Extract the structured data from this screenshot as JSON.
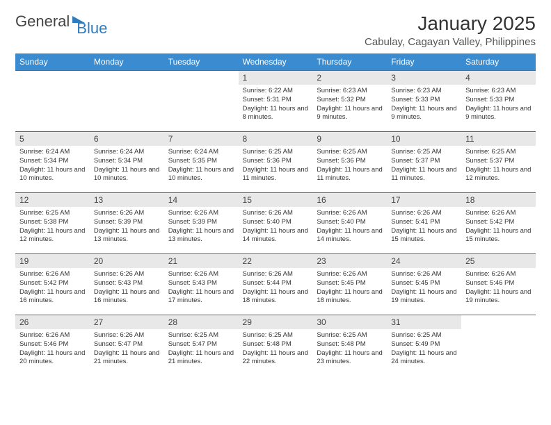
{
  "logo": {
    "text1": "General",
    "text2": "Blue"
  },
  "title": "January 2025",
  "location": "Cabulay, Cagayan Valley, Philippines",
  "colors": {
    "header_bg": "#3a8bd0",
    "header_text": "#ffffff",
    "row_border": "#3a6ea5",
    "daynum_bg": "#e8e8e8",
    "page_bg": "#ffffff",
    "text": "#333333",
    "logo_gray": "#444444",
    "logo_blue": "#2e7cc0"
  },
  "weekdays": [
    "Sunday",
    "Monday",
    "Tuesday",
    "Wednesday",
    "Thursday",
    "Friday",
    "Saturday"
  ],
  "weeks": [
    [
      {
        "n": "",
        "sr": "",
        "ss": "",
        "dl": ""
      },
      {
        "n": "",
        "sr": "",
        "ss": "",
        "dl": ""
      },
      {
        "n": "",
        "sr": "",
        "ss": "",
        "dl": ""
      },
      {
        "n": "1",
        "sr": "Sunrise: 6:22 AM",
        "ss": "Sunset: 5:31 PM",
        "dl": "Daylight: 11 hours and 8 minutes."
      },
      {
        "n": "2",
        "sr": "Sunrise: 6:23 AM",
        "ss": "Sunset: 5:32 PM",
        "dl": "Daylight: 11 hours and 9 minutes."
      },
      {
        "n": "3",
        "sr": "Sunrise: 6:23 AM",
        "ss": "Sunset: 5:33 PM",
        "dl": "Daylight: 11 hours and 9 minutes."
      },
      {
        "n": "4",
        "sr": "Sunrise: 6:23 AM",
        "ss": "Sunset: 5:33 PM",
        "dl": "Daylight: 11 hours and 9 minutes."
      }
    ],
    [
      {
        "n": "5",
        "sr": "Sunrise: 6:24 AM",
        "ss": "Sunset: 5:34 PM",
        "dl": "Daylight: 11 hours and 10 minutes."
      },
      {
        "n": "6",
        "sr": "Sunrise: 6:24 AM",
        "ss": "Sunset: 5:34 PM",
        "dl": "Daylight: 11 hours and 10 minutes."
      },
      {
        "n": "7",
        "sr": "Sunrise: 6:24 AM",
        "ss": "Sunset: 5:35 PM",
        "dl": "Daylight: 11 hours and 10 minutes."
      },
      {
        "n": "8",
        "sr": "Sunrise: 6:25 AM",
        "ss": "Sunset: 5:36 PM",
        "dl": "Daylight: 11 hours and 11 minutes."
      },
      {
        "n": "9",
        "sr": "Sunrise: 6:25 AM",
        "ss": "Sunset: 5:36 PM",
        "dl": "Daylight: 11 hours and 11 minutes."
      },
      {
        "n": "10",
        "sr": "Sunrise: 6:25 AM",
        "ss": "Sunset: 5:37 PM",
        "dl": "Daylight: 11 hours and 11 minutes."
      },
      {
        "n": "11",
        "sr": "Sunrise: 6:25 AM",
        "ss": "Sunset: 5:37 PM",
        "dl": "Daylight: 11 hours and 12 minutes."
      }
    ],
    [
      {
        "n": "12",
        "sr": "Sunrise: 6:25 AM",
        "ss": "Sunset: 5:38 PM",
        "dl": "Daylight: 11 hours and 12 minutes."
      },
      {
        "n": "13",
        "sr": "Sunrise: 6:26 AM",
        "ss": "Sunset: 5:39 PM",
        "dl": "Daylight: 11 hours and 13 minutes."
      },
      {
        "n": "14",
        "sr": "Sunrise: 6:26 AM",
        "ss": "Sunset: 5:39 PM",
        "dl": "Daylight: 11 hours and 13 minutes."
      },
      {
        "n": "15",
        "sr": "Sunrise: 6:26 AM",
        "ss": "Sunset: 5:40 PM",
        "dl": "Daylight: 11 hours and 14 minutes."
      },
      {
        "n": "16",
        "sr": "Sunrise: 6:26 AM",
        "ss": "Sunset: 5:40 PM",
        "dl": "Daylight: 11 hours and 14 minutes."
      },
      {
        "n": "17",
        "sr": "Sunrise: 6:26 AM",
        "ss": "Sunset: 5:41 PM",
        "dl": "Daylight: 11 hours and 15 minutes."
      },
      {
        "n": "18",
        "sr": "Sunrise: 6:26 AM",
        "ss": "Sunset: 5:42 PM",
        "dl": "Daylight: 11 hours and 15 minutes."
      }
    ],
    [
      {
        "n": "19",
        "sr": "Sunrise: 6:26 AM",
        "ss": "Sunset: 5:42 PM",
        "dl": "Daylight: 11 hours and 16 minutes."
      },
      {
        "n": "20",
        "sr": "Sunrise: 6:26 AM",
        "ss": "Sunset: 5:43 PM",
        "dl": "Daylight: 11 hours and 16 minutes."
      },
      {
        "n": "21",
        "sr": "Sunrise: 6:26 AM",
        "ss": "Sunset: 5:43 PM",
        "dl": "Daylight: 11 hours and 17 minutes."
      },
      {
        "n": "22",
        "sr": "Sunrise: 6:26 AM",
        "ss": "Sunset: 5:44 PM",
        "dl": "Daylight: 11 hours and 18 minutes."
      },
      {
        "n": "23",
        "sr": "Sunrise: 6:26 AM",
        "ss": "Sunset: 5:45 PM",
        "dl": "Daylight: 11 hours and 18 minutes."
      },
      {
        "n": "24",
        "sr": "Sunrise: 6:26 AM",
        "ss": "Sunset: 5:45 PM",
        "dl": "Daylight: 11 hours and 19 minutes."
      },
      {
        "n": "25",
        "sr": "Sunrise: 6:26 AM",
        "ss": "Sunset: 5:46 PM",
        "dl": "Daylight: 11 hours and 19 minutes."
      }
    ],
    [
      {
        "n": "26",
        "sr": "Sunrise: 6:26 AM",
        "ss": "Sunset: 5:46 PM",
        "dl": "Daylight: 11 hours and 20 minutes."
      },
      {
        "n": "27",
        "sr": "Sunrise: 6:26 AM",
        "ss": "Sunset: 5:47 PM",
        "dl": "Daylight: 11 hours and 21 minutes."
      },
      {
        "n": "28",
        "sr": "Sunrise: 6:25 AM",
        "ss": "Sunset: 5:47 PM",
        "dl": "Daylight: 11 hours and 21 minutes."
      },
      {
        "n": "29",
        "sr": "Sunrise: 6:25 AM",
        "ss": "Sunset: 5:48 PM",
        "dl": "Daylight: 11 hours and 22 minutes."
      },
      {
        "n": "30",
        "sr": "Sunrise: 6:25 AM",
        "ss": "Sunset: 5:48 PM",
        "dl": "Daylight: 11 hours and 23 minutes."
      },
      {
        "n": "31",
        "sr": "Sunrise: 6:25 AM",
        "ss": "Sunset: 5:49 PM",
        "dl": "Daylight: 11 hours and 24 minutes."
      },
      {
        "n": "",
        "sr": "",
        "ss": "",
        "dl": ""
      }
    ]
  ]
}
